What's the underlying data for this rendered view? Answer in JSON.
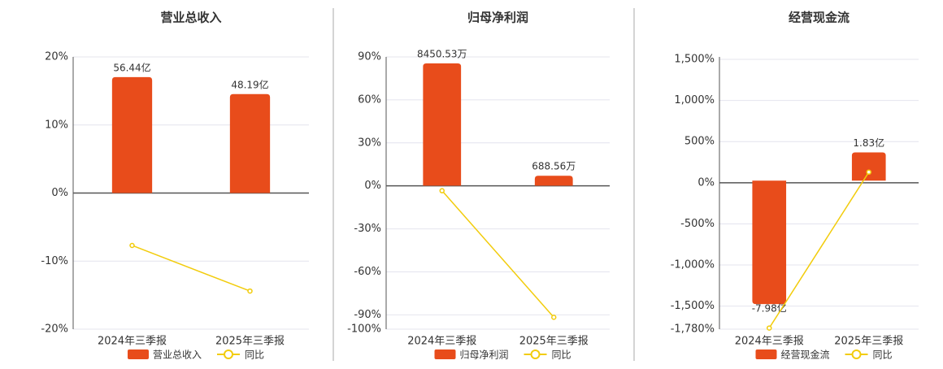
{
  "chart_data": [
    {
      "type": "bar-line",
      "title": "营业总收入",
      "categories": [
        "2024年三季报",
        "2025年三季报"
      ],
      "series": [
        {
          "name": "营业总收入",
          "color": "#e84c1b",
          "axis": "y2",
          "values": [
            56.44,
            48.19
          ],
          "value_labels": [
            "56.44亿",
            "48.19亿"
          ]
        },
        {
          "name": "同比",
          "color": "#f2cc0c",
          "values": [
            -7.7,
            -14.4
          ]
        }
      ],
      "ylim": [
        -20,
        20
      ],
      "yticks": [
        {
          "value": 20,
          "label": "20%"
        },
        {
          "value": 10,
          "label": "10%"
        },
        {
          "value": 0,
          "label": "0%"
        },
        {
          "value": -10,
          "label": "-10%"
        },
        {
          "value": -20,
          "label": "-20%"
        }
      ],
      "y2lim": [
        -66.3,
        66.3
      ],
      "grid": true
    },
    {
      "type": "bar-line",
      "title": "归母净利润",
      "categories": [
        "2024年三季报",
        "2025年三季报"
      ],
      "series": [
        {
          "name": "归母净利润",
          "color": "#e84c1b",
          "axis": "y2",
          "values": [
            8450.53,
            688.56
          ],
          "value_labels": [
            "8450.53万",
            "688.56万"
          ]
        },
        {
          "name": "同比",
          "color": "#f2cc0c",
          "values": [
            -3.4,
            -91.7
          ]
        }
      ],
      "ylim": [
        -100,
        90
      ],
      "yticks": [
        {
          "value": 90,
          "label": "90%"
        },
        {
          "value": 60,
          "label": "60%"
        },
        {
          "value": 30,
          "label": "30%"
        },
        {
          "value": 0,
          "label": "0%"
        },
        {
          "value": -30,
          "label": "-30%"
        },
        {
          "value": -60,
          "label": "-60%"
        },
        {
          "value": -90,
          "label": "-90%"
        },
        {
          "value": -100,
          "label": "-100%"
        }
      ],
      "y2lim": [
        -9914,
        8900
      ],
      "grid": true
    },
    {
      "type": "bar-line",
      "title": "经营现金流",
      "categories": [
        "2024年三季报",
        "2025年三季报"
      ],
      "series": [
        {
          "name": "经营现金流",
          "color": "#e84c1b",
          "axis": "y2",
          "values": [
            -7.98,
            1.83
          ],
          "value_labels": [
            "-7.98亿",
            "1.83亿"
          ]
        },
        {
          "name": "同比",
          "color": "#f2cc0c",
          "values": [
            -1766,
            129
          ]
        }
      ],
      "ylim": [
        -1780,
        1530
      ],
      "yticks": [
        {
          "value": 1500,
          "label": "1,500%"
        },
        {
          "value": 1000,
          "label": "1,000%"
        },
        {
          "value": 500,
          "label": "500%"
        },
        {
          "value": 0,
          "label": "0%"
        },
        {
          "value": -500,
          "label": "-500%"
        },
        {
          "value": -1000,
          "label": "-1,000%"
        },
        {
          "value": -1500,
          "label": "-1,500%"
        },
        {
          "value": -1780,
          "label": "-1,780%"
        }
      ],
      "y2lim": [
        -9.6,
        8.0
      ],
      "grid": true
    }
  ]
}
